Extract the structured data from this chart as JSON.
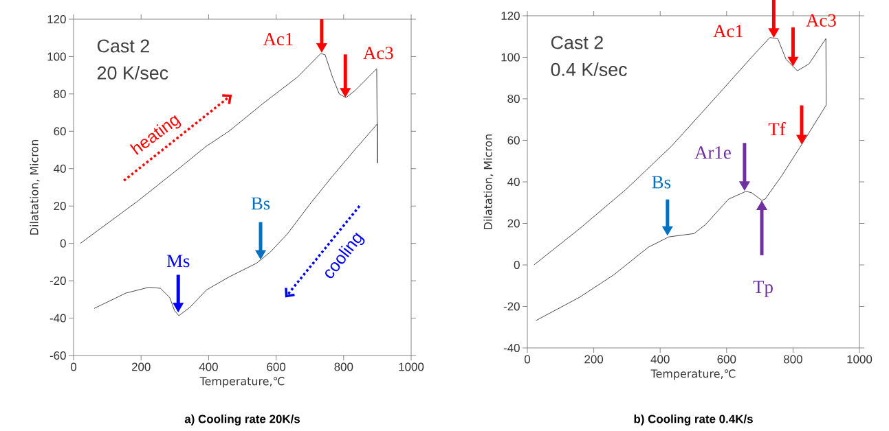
{
  "chart_data": [
    {
      "type": "line",
      "title": "a)  Cooling rate 20K/s",
      "xlabel": "Temperature,℃",
      "ylabel": "Dilatation, Micron",
      "xlim": [
        0,
        1000
      ],
      "xticks": [
        0,
        200,
        400,
        600,
        800,
        1000
      ],
      "ylim": [
        -60,
        120
      ],
      "yticks": [
        -60,
        -40,
        -20,
        0,
        20,
        40,
        60,
        80,
        100,
        120
      ],
      "series": [
        {
          "color": "#333333",
          "x": [
            20,
            189,
            325,
            393,
            460,
            562,
            663,
            732,
            745,
            767,
            787,
            807,
            835,
            898,
            900,
            900,
            835,
            767,
            700,
            633,
            583,
            542,
            460,
            393,
            346,
            312,
            299,
            285,
            257,
            223,
            155,
            61
          ],
          "values": [
            0,
            22.5,
            42,
            52,
            60,
            75,
            89,
            101.6,
            101,
            89,
            80,
            78,
            82,
            93.5,
            43,
            64,
            50.5,
            36,
            21,
            5,
            -4.6,
            -10.6,
            -18,
            -25,
            -34,
            -38.7,
            -36,
            -29,
            -24,
            -23.5,
            -26.6,
            -34.8
          ]
        }
      ],
      "annotations": [
        "Cast 2",
        "20 K/sec",
        "heating",
        "cooling",
        {
          "text": "Ac1",
          "x": 735,
          "y": 102
        },
        {
          "text": "Ac3",
          "x": 805,
          "y": 78
        },
        {
          "text": "Ms",
          "x": 310,
          "y": -37
        },
        {
          "text": "Bs",
          "x": 554,
          "y": -8.8
        }
      ]
    },
    {
      "type": "line",
      "title": "b)  Cooling rate 0.4K/s",
      "xlabel": "Temperature,℃",
      "ylabel": "Dilatation, Micron",
      "xlim": [
        0,
        1000
      ],
      "xticks": [
        0,
        200,
        400,
        600,
        800,
        1000
      ],
      "ylim": [
        -40,
        120
      ],
      "yticks": [
        -40,
        -20,
        0,
        20,
        40,
        60,
        80,
        100,
        120
      ],
      "series": [
        {
          "color": "#333333",
          "x": [
            20,
            157,
            295,
            433,
            571,
            675,
            730,
            754,
            779,
            813,
            848,
            899,
            900,
            827,
            765,
            716,
            706,
            675,
            658,
            606,
            537,
            502,
            426,
            364,
            261,
            157,
            26
          ],
          "values": [
            0,
            17.4,
            36.1,
            57,
            81.4,
            100,
            109.5,
            109,
            99,
            93.5,
            96.8,
            109,
            77,
            58.2,
            42.7,
            31.7,
            31.1,
            34.8,
            35.4,
            31.7,
            19.5,
            15.1,
            13.5,
            8.5,
            -4.7,
            -15.6,
            -26.8
          ]
        }
      ],
      "annotations": [
        "Cast 2",
        "0.4 K/sec",
        {
          "text": "Ac1",
          "x": 742,
          "y": 109.3
        },
        {
          "text": "Ac3",
          "x": 800,
          "y": 95.6
        },
        {
          "text": "Tf",
          "x": 826,
          "y": 58
        },
        {
          "text": "Ar1e",
          "x": 654,
          "y": 35.6
        },
        "Tp",
        {
          "text": "Bs",
          "x": 422,
          "y": 14
        }
      ]
    }
  ]
}
